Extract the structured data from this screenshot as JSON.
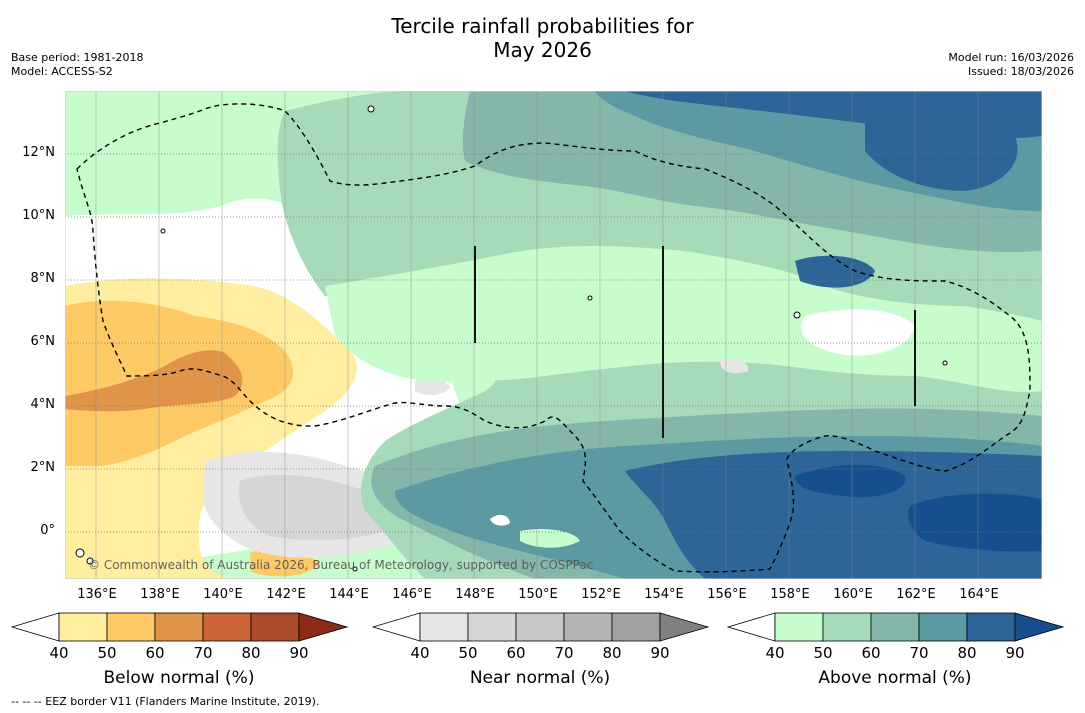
{
  "title_line1": "Tercile rainfall probabilities for",
  "title_line2": "May 2026",
  "base_period": "Base period: 1981-2018",
  "model": "Model: ACCESS-S2",
  "model_run": "Model run: 16/03/2026",
  "issued": "Issued: 18/03/2026",
  "lat_labels": [
    "12°N",
    "10°N",
    "8°N",
    "6°N",
    "4°N",
    "2°N",
    "0°"
  ],
  "lon_labels": [
    "136°E",
    "138°E",
    "140°E",
    "142°E",
    "144°E",
    "146°E",
    "148°E",
    "150°E",
    "152°E",
    "154°E",
    "156°E",
    "158°E",
    "160°E",
    "162°E",
    "164°E"
  ],
  "credit": "© Commonwealth of Australia 2026, Bureau of Meteorology, supported by COSPPac",
  "footnote": "--  --  -- EEZ border V11 (Flanders Marine Institute, 2019).",
  "colorbars": {
    "below": {
      "title": "Below normal (%)",
      "ticks": [
        "40",
        "50",
        "60",
        "70",
        "80",
        "90"
      ],
      "colors": [
        "#ffeda0",
        "#fdca66",
        "#e0944a",
        "#cb6436",
        "#ab4a28",
        "#8c2b18"
      ]
    },
    "near": {
      "title": "Near normal (%)",
      "ticks": [
        "40",
        "50",
        "60",
        "70",
        "80",
        "90"
      ],
      "colors": [
        "#e6e6e6",
        "#d6d6d6",
        "#c7c7c7",
        "#b5b5b5",
        "#a0a0a0",
        "#808080"
      ]
    },
    "above": {
      "title": "Above normal (%)",
      "ticks": [
        "40",
        "50",
        "60",
        "70",
        "80",
        "90"
      ],
      "colors": [
        "#c7fdcc",
        "#a6dbba",
        "#84b6aa",
        "#5b9aa2",
        "#2e6598",
        "#164f8e"
      ]
    }
  }
}
